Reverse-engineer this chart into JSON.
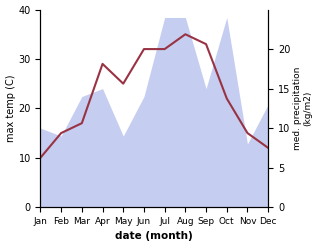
{
  "months": [
    "Jan",
    "Feb",
    "Mar",
    "Apr",
    "May",
    "Jun",
    "Jul",
    "Aug",
    "Sep",
    "Oct",
    "Nov",
    "Dec"
  ],
  "max_temp": [
    10,
    15,
    17,
    29,
    25,
    32,
    32,
    35,
    33,
    22,
    15,
    12
  ],
  "precipitation": [
    16.5,
    15,
    23,
    24,
    15,
    22,
    38,
    38,
    24,
    38,
    13,
    21
  ],
  "temp_color": "#993344",
  "precip_fill_color": "#c5cef0",
  "temp_ylim": [
    0,
    40
  ],
  "precip_ylim": [
    0,
    40
  ],
  "precip_scale_max": 25,
  "precip_yticks": [
    0,
    5,
    10,
    15,
    20
  ],
  "temp_yticks": [
    0,
    10,
    20,
    30,
    40
  ],
  "xlabel": "date (month)",
  "ylabel_left": "max temp (C)",
  "ylabel_right": "med. precipitation\n(kg/m2)",
  "background_color": "#ffffff"
}
